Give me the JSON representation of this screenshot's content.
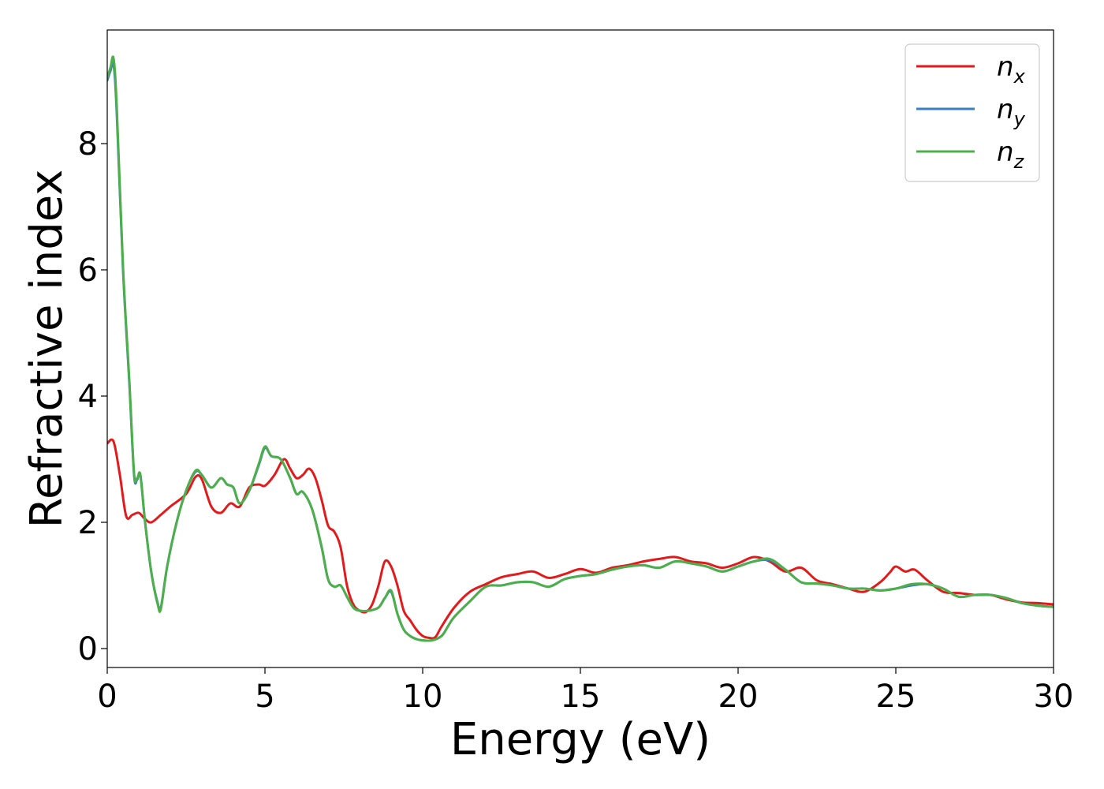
{
  "chart_data": {
    "type": "line",
    "xlabel": "Energy (eV)",
    "ylabel": "Refractive index",
    "xlim": [
      0,
      30
    ],
    "ylim": [
      -0.3,
      9.8
    ],
    "xticks": [
      0,
      5,
      10,
      15,
      20,
      25,
      30
    ],
    "yticks": [
      0,
      2,
      4,
      6,
      8
    ],
    "grid": false,
    "legend_position": "top-right",
    "series": [
      {
        "name": "n",
        "subscript": "x",
        "color": "#e31a1c",
        "x": [
          0.0,
          0.2,
          0.4,
          0.6,
          0.8,
          1.0,
          1.2,
          1.4,
          1.7,
          2.0,
          2.5,
          2.8,
          3.0,
          3.3,
          3.6,
          3.9,
          4.2,
          4.5,
          4.8,
          5.0,
          5.3,
          5.6,
          5.8,
          6.0,
          6.2,
          6.4,
          6.6,
          6.8,
          7.0,
          7.2,
          7.4,
          7.6,
          7.8,
          8.0,
          8.2,
          8.4,
          8.6,
          8.8,
          9.0,
          9.2,
          9.4,
          9.6,
          9.8,
          10.0,
          10.2,
          10.4,
          10.6,
          11.0,
          11.5,
          12.0,
          12.5,
          13.0,
          13.5,
          14.0,
          14.5,
          15.0,
          15.5,
          16.0,
          16.5,
          17.0,
          17.5,
          18.0,
          18.5,
          19.0,
          19.5,
          20.0,
          20.5,
          21.0,
          21.5,
          22.0,
          22.5,
          23.0,
          23.5,
          24.0,
          24.5,
          24.8,
          25.0,
          25.3,
          25.6,
          26.0,
          26.5,
          27.0,
          27.5,
          28.0,
          28.5,
          29.0,
          29.5,
          30.0
        ],
        "values": [
          3.25,
          3.28,
          2.75,
          2.1,
          2.12,
          2.15,
          2.05,
          2.0,
          2.12,
          2.25,
          2.45,
          2.72,
          2.68,
          2.25,
          2.15,
          2.3,
          2.25,
          2.55,
          2.6,
          2.58,
          2.75,
          3.0,
          2.85,
          2.7,
          2.75,
          2.85,
          2.7,
          2.35,
          1.95,
          1.85,
          1.6,
          1.0,
          0.7,
          0.6,
          0.58,
          0.7,
          1.0,
          1.38,
          1.3,
          1.0,
          0.6,
          0.45,
          0.3,
          0.2,
          0.17,
          0.18,
          0.35,
          0.65,
          0.9,
          1.02,
          1.13,
          1.18,
          1.22,
          1.12,
          1.18,
          1.26,
          1.2,
          1.28,
          1.32,
          1.38,
          1.42,
          1.45,
          1.38,
          1.35,
          1.28,
          1.35,
          1.45,
          1.38,
          1.22,
          1.28,
          1.08,
          1.02,
          0.95,
          0.9,
          1.05,
          1.2,
          1.3,
          1.22,
          1.25,
          1.08,
          0.9,
          0.88,
          0.85,
          0.85,
          0.78,
          0.73,
          0.72,
          0.7
        ]
      },
      {
        "name": "n",
        "subscript": "y",
        "color": "#3a7fc1",
        "x": [
          0.0,
          0.1,
          0.2,
          0.3,
          0.5,
          0.7,
          0.85,
          0.95,
          1.05,
          1.2,
          1.4,
          1.6,
          1.7,
          1.9,
          2.2,
          2.5,
          2.8,
          3.0,
          3.3,
          3.6,
          3.8,
          4.0,
          4.2,
          4.5,
          4.8,
          5.0,
          5.2,
          5.5,
          5.8,
          6.0,
          6.2,
          6.5,
          6.8,
          7.0,
          7.2,
          7.4,
          7.6,
          7.8,
          8.0,
          8.3,
          8.6,
          8.8,
          9.0,
          9.2,
          9.4,
          9.6,
          9.8,
          10.0,
          10.3,
          10.6,
          10.8,
          11.0,
          11.5,
          12.0,
          12.5,
          13.0,
          13.5,
          14.0,
          14.5,
          15.0,
          15.5,
          16.0,
          16.5,
          17.0,
          17.5,
          18.0,
          18.5,
          19.0,
          19.5,
          20.0,
          20.5,
          21.0,
          21.5,
          22.0,
          22.5,
          23.0,
          23.5,
          24.0,
          24.5,
          25.0,
          25.5,
          26.0,
          26.5,
          27.0,
          27.5,
          28.0,
          28.5,
          29.0,
          29.5,
          30.0
        ],
        "values": [
          9.0,
          9.15,
          9.25,
          8.5,
          6.0,
          4.2,
          2.75,
          2.68,
          2.75,
          2.0,
          1.2,
          0.72,
          0.65,
          1.3,
          2.0,
          2.5,
          2.8,
          2.75,
          2.55,
          2.7,
          2.6,
          2.55,
          2.3,
          2.5,
          2.9,
          3.18,
          3.05,
          3.0,
          2.7,
          2.45,
          2.48,
          2.2,
          1.6,
          1.1,
          0.98,
          1.0,
          0.82,
          0.65,
          0.6,
          0.6,
          0.65,
          0.8,
          0.9,
          0.55,
          0.3,
          0.2,
          0.15,
          0.13,
          0.13,
          0.2,
          0.35,
          0.5,
          0.75,
          0.98,
          1.0,
          1.05,
          1.05,
          0.98,
          1.1,
          1.15,
          1.18,
          1.25,
          1.3,
          1.32,
          1.28,
          1.38,
          1.35,
          1.3,
          1.22,
          1.3,
          1.38,
          1.4,
          1.25,
          1.05,
          1.03,
          1.0,
          0.95,
          0.95,
          0.92,
          0.95,
          1.0,
          1.02,
          0.95,
          0.82,
          0.85,
          0.85,
          0.8,
          0.72,
          0.68,
          0.66
        ]
      },
      {
        "name": "n",
        "subscript": "z",
        "color": "#4daf4a",
        "x": [
          0.0,
          0.1,
          0.2,
          0.3,
          0.5,
          0.7,
          0.85,
          0.95,
          1.05,
          1.2,
          1.4,
          1.6,
          1.7,
          1.9,
          2.2,
          2.5,
          2.8,
          3.0,
          3.3,
          3.6,
          3.8,
          4.0,
          4.2,
          4.5,
          4.8,
          5.0,
          5.2,
          5.5,
          5.8,
          6.0,
          6.2,
          6.5,
          6.8,
          7.0,
          7.2,
          7.4,
          7.6,
          7.8,
          8.0,
          8.3,
          8.6,
          8.8,
          9.0,
          9.2,
          9.4,
          9.6,
          9.8,
          10.0,
          10.3,
          10.6,
          10.8,
          11.0,
          11.5,
          12.0,
          12.5,
          13.0,
          13.5,
          14.0,
          14.5,
          15.0,
          15.5,
          16.0,
          16.5,
          17.0,
          17.5,
          18.0,
          18.5,
          19.0,
          19.5,
          20.0,
          20.5,
          21.0,
          21.5,
          22.0,
          22.5,
          23.0,
          23.5,
          24.0,
          24.5,
          25.0,
          25.5,
          26.0,
          26.5,
          27.0,
          27.5,
          28.0,
          28.5,
          29.0,
          29.5,
          30.0
        ],
        "values": [
          9.05,
          9.2,
          9.35,
          8.6,
          6.05,
          4.25,
          2.78,
          2.7,
          2.75,
          2.0,
          1.2,
          0.7,
          0.63,
          1.3,
          2.0,
          2.5,
          2.82,
          2.75,
          2.55,
          2.7,
          2.6,
          2.55,
          2.3,
          2.5,
          2.92,
          3.2,
          3.05,
          3.0,
          2.7,
          2.45,
          2.48,
          2.2,
          1.6,
          1.1,
          0.98,
          1.0,
          0.82,
          0.65,
          0.6,
          0.6,
          0.65,
          0.8,
          0.92,
          0.55,
          0.3,
          0.2,
          0.15,
          0.13,
          0.13,
          0.2,
          0.35,
          0.5,
          0.75,
          0.98,
          1.0,
          1.05,
          1.05,
          0.98,
          1.1,
          1.15,
          1.18,
          1.25,
          1.3,
          1.32,
          1.28,
          1.38,
          1.35,
          1.3,
          1.22,
          1.3,
          1.38,
          1.42,
          1.25,
          1.05,
          1.03,
          1.0,
          0.95,
          0.95,
          0.92,
          0.95,
          1.02,
          1.02,
          0.95,
          0.82,
          0.85,
          0.85,
          0.8,
          0.72,
          0.68,
          0.66
        ]
      }
    ]
  }
}
